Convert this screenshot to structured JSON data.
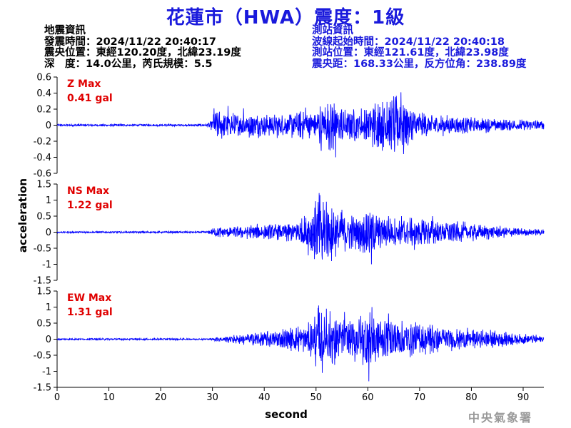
{
  "header": {
    "title": "花蓮市（HWA）震度：1級"
  },
  "earthquake_info": {
    "heading": "地震資訊",
    "origin_time": "發震時間：2024/11/22 20:40:17",
    "epicenter": "震央位置：東經120.20度，北緯23.19度",
    "depth_magnitude": "深　度：14.0公里，芮氏規模：5.5"
  },
  "station_info": {
    "heading": "測站資訊",
    "wave_start": "波線起始時間：2024/11/22 20:40:18",
    "station_location": "測站位置：東經121.61度，北緯23.98度",
    "distance_azimuth": "震央距：168.33公里，反方位角：238.89度"
  },
  "footer": {
    "organization": "中央氣象署"
  },
  "colors": {
    "title": "#1a1adc",
    "trace": "#0000ff",
    "max_label": "#e00000",
    "axis": "#000000"
  },
  "chart_data": {
    "type": "line",
    "xlabel": "second",
    "ylabel": "acceleration",
    "xlim": [
      0,
      94
    ],
    "x_ticks": [
      0,
      10,
      20,
      30,
      40,
      50,
      60,
      70,
      80,
      90
    ],
    "grid": false,
    "panels": [
      {
        "name": "Z Max",
        "max_value": "0.41 gal",
        "ylim": [
          -0.6,
          0.6
        ],
        "y_ticks": [
          -0.6,
          -0.4,
          -0.2,
          0,
          0.2,
          0.4,
          0.6
        ],
        "y_tick_labels": [
          "-0.6",
          "-0.4",
          "-0.2",
          "0",
          "0.2",
          "0.4",
          "0.6"
        ],
        "envelope": [
          [
            0,
            0.012
          ],
          [
            29,
            0.012
          ],
          [
            29.8,
            0.06
          ],
          [
            30.5,
            0.16
          ],
          [
            33,
            0.14
          ],
          [
            36,
            0.12
          ],
          [
            38,
            0.14
          ],
          [
            40,
            0.13
          ],
          [
            44,
            0.11
          ],
          [
            46,
            0.16
          ],
          [
            48,
            0.18
          ],
          [
            50,
            0.2
          ],
          [
            52,
            0.26
          ],
          [
            53,
            0.3
          ],
          [
            54,
            0.22
          ],
          [
            57,
            0.18
          ],
          [
            60,
            0.2
          ],
          [
            62,
            0.28
          ],
          [
            64,
            0.3
          ],
          [
            66,
            0.38
          ],
          [
            68,
            0.2
          ],
          [
            72,
            0.12
          ],
          [
            76,
            0.1
          ],
          [
            80,
            0.09
          ],
          [
            85,
            0.07
          ],
          [
            90,
            0.06
          ],
          [
            94,
            0.05
          ]
        ],
        "spikes": [
          {
            "t": 30.3,
            "v": 0.21
          },
          {
            "t": 33.0,
            "v": 0.24
          },
          {
            "t": 36.0,
            "v": 0.21
          },
          {
            "t": 42.5,
            "v": -0.16
          },
          {
            "t": 48.0,
            "v": 0.22
          },
          {
            "t": 51.0,
            "v": -0.32
          },
          {
            "t": 53.5,
            "v": 0.27
          },
          {
            "t": 53.8,
            "v": -0.4
          },
          {
            "t": 55.0,
            "v": -0.15
          },
          {
            "t": 62.0,
            "v": 0.26
          },
          {
            "t": 63.7,
            "v": 0.29
          },
          {
            "t": 65.2,
            "v": -0.25
          },
          {
            "t": 66.4,
            "v": 0.41
          },
          {
            "t": 66.9,
            "v": -0.36
          },
          {
            "t": 67.4,
            "v": 0.2
          }
        ]
      },
      {
        "name": "NS Max",
        "max_value": "1.22 gal",
        "ylim": [
          -1.5,
          1.5
        ],
        "y_ticks": [
          -1.5,
          -1,
          -0.5,
          0,
          0.5,
          1,
          1.5
        ],
        "y_tick_labels": [
          "-1.5",
          "-1",
          "-0.5",
          "0",
          "0.5",
          "1",
          "1.5"
        ],
        "envelope": [
          [
            0,
            0.025
          ],
          [
            29,
            0.025
          ],
          [
            30,
            0.1
          ],
          [
            31,
            0.15
          ],
          [
            34,
            0.16
          ],
          [
            38,
            0.2
          ],
          [
            42,
            0.22
          ],
          [
            46,
            0.3
          ],
          [
            48,
            0.45
          ],
          [
            50,
            0.9
          ],
          [
            51,
            1.0
          ],
          [
            52,
            0.8
          ],
          [
            54,
            0.6
          ],
          [
            56,
            0.5
          ],
          [
            58,
            0.45
          ],
          [
            60,
            0.7
          ],
          [
            62,
            0.45
          ],
          [
            64,
            0.4
          ],
          [
            68,
            0.38
          ],
          [
            72,
            0.35
          ],
          [
            76,
            0.3
          ],
          [
            80,
            0.25
          ],
          [
            85,
            0.16
          ],
          [
            90,
            0.1
          ],
          [
            94,
            0.08
          ]
        ],
        "spikes": [
          {
            "t": 50.6,
            "v": 1.22
          },
          {
            "t": 51.2,
            "v": -0.85
          },
          {
            "t": 52.0,
            "v": 0.95
          },
          {
            "t": 53.0,
            "v": -0.9
          },
          {
            "t": 55.0,
            "v": 0.7
          },
          {
            "t": 58.5,
            "v": -0.6
          },
          {
            "t": 60.7,
            "v": -1.0
          },
          {
            "t": 61.0,
            "v": 0.55
          },
          {
            "t": 64.0,
            "v": 0.5
          },
          {
            "t": 66.5,
            "v": 0.5
          },
          {
            "t": 69.0,
            "v": -0.55
          },
          {
            "t": 72.5,
            "v": 0.5
          }
        ]
      },
      {
        "name": "EW Max",
        "max_value": "1.31 gal",
        "ylim": [
          -1.5,
          1.5
        ],
        "y_ticks": [
          -1.5,
          -1,
          -0.5,
          0,
          0.5,
          1,
          1.5
        ],
        "y_tick_labels": [
          "-1.5",
          "-1",
          "-0.5",
          "0",
          "0.5",
          "1",
          "1.5"
        ],
        "envelope": [
          [
            0,
            0.025
          ],
          [
            30,
            0.025
          ],
          [
            31,
            0.07
          ],
          [
            33,
            0.1
          ],
          [
            38,
            0.18
          ],
          [
            42,
            0.25
          ],
          [
            46,
            0.35
          ],
          [
            49,
            0.45
          ],
          [
            50,
            0.75
          ],
          [
            51,
            0.95
          ],
          [
            52,
            0.75
          ],
          [
            54,
            0.6
          ],
          [
            56,
            0.55
          ],
          [
            58,
            0.55
          ],
          [
            60,
            0.9
          ],
          [
            61,
            0.8
          ],
          [
            62,
            0.6
          ],
          [
            66,
            0.5
          ],
          [
            70,
            0.45
          ],
          [
            74,
            0.4
          ],
          [
            78,
            0.3
          ],
          [
            82,
            0.25
          ],
          [
            86,
            0.2
          ],
          [
            90,
            0.14
          ],
          [
            94,
            0.1
          ]
        ],
        "spikes": [
          {
            "t": 50.5,
            "v": 1.05
          },
          {
            "t": 51.2,
            "v": -1.05
          },
          {
            "t": 52.0,
            "v": 0.95
          },
          {
            "t": 53.6,
            "v": -0.8
          },
          {
            "t": 55.5,
            "v": 0.85
          },
          {
            "t": 57.5,
            "v": -0.7
          },
          {
            "t": 60.2,
            "v": -1.31
          },
          {
            "t": 60.8,
            "v": 1.0
          },
          {
            "t": 61.5,
            "v": -0.7
          },
          {
            "t": 64.0,
            "v": 0.8
          },
          {
            "t": 70.0,
            "v": 0.45
          },
          {
            "t": 72.0,
            "v": 0.45
          }
        ]
      }
    ]
  }
}
